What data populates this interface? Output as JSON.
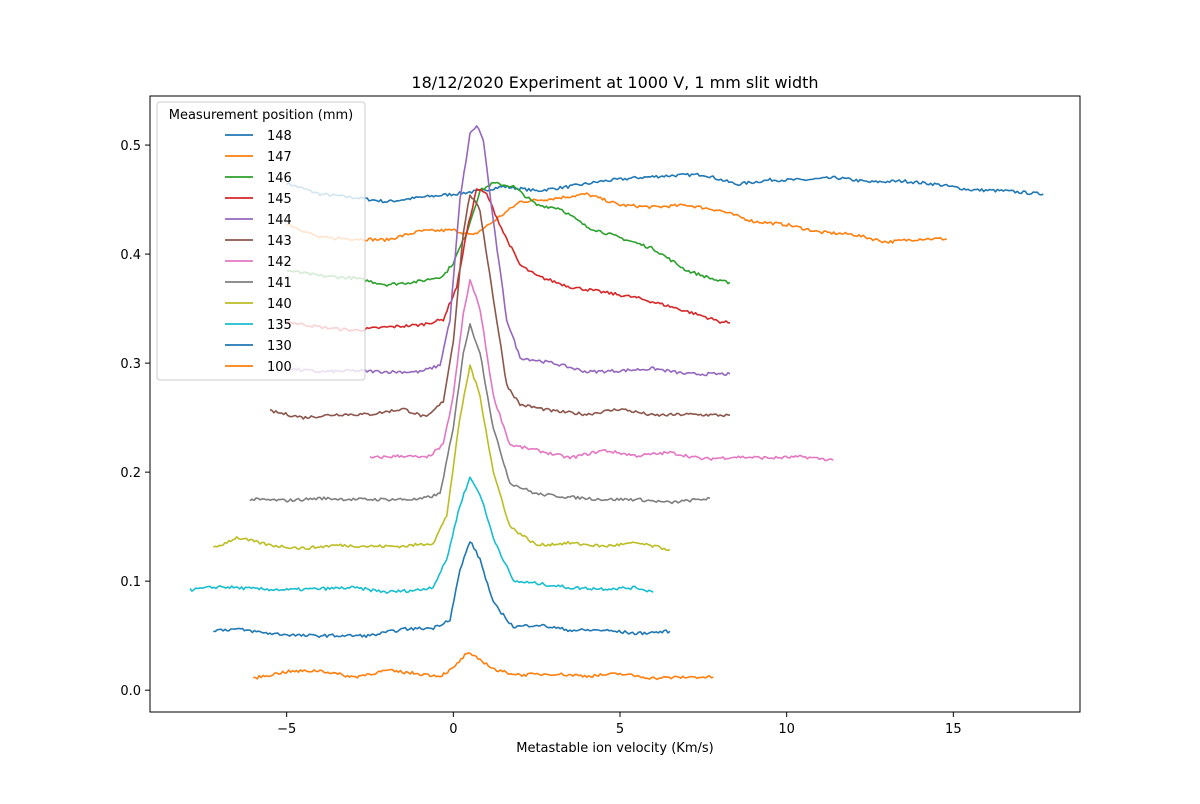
{
  "chart_data": {
    "type": "line",
    "title": "18/12/2020 Experiment at 1000 V, 1 mm slit width",
    "xlabel": "Metastable ion velocity (Km/s)",
    "ylabel": "",
    "xlim": [
      -9.1,
      18.8
    ],
    "ylim": [
      -0.02,
      0.545
    ],
    "x_ticks": [
      -5,
      0,
      5,
      10,
      15
    ],
    "x_tick_labels": [
      "−5",
      "0",
      "5",
      "10",
      "15"
    ],
    "y_ticks": [
      0.0,
      0.1,
      0.2,
      0.3,
      0.4,
      0.5
    ],
    "y_tick_labels": [
      "0.0",
      "0.1",
      "0.2",
      "0.3",
      "0.4",
      "0.5"
    ],
    "grid": false,
    "legend": {
      "title": "Measurement position (mm)",
      "placement": "upper-left"
    },
    "series": [
      {
        "name": "148",
        "color": "#1f77b4",
        "points": [
          [
            -5.0,
            0.465
          ],
          [
            -4.0,
            0.455
          ],
          [
            -3.0,
            0.452
          ],
          [
            -2.0,
            0.448
          ],
          [
            -1.0,
            0.452
          ],
          [
            0.0,
            0.455
          ],
          [
            0.8,
            0.458
          ],
          [
            1.5,
            0.462
          ],
          [
            2.5,
            0.458
          ],
          [
            3.5,
            0.462
          ],
          [
            4.5,
            0.467
          ],
          [
            5.5,
            0.47
          ],
          [
            6.5,
            0.472
          ],
          [
            7.5,
            0.473
          ],
          [
            8.5,
            0.464
          ],
          [
            9.5,
            0.468
          ],
          [
            10.5,
            0.468
          ],
          [
            11.5,
            0.47
          ],
          [
            12.5,
            0.466
          ],
          [
            13.5,
            0.467
          ],
          [
            14.5,
            0.464
          ],
          [
            15.5,
            0.459
          ],
          [
            16.5,
            0.458
          ],
          [
            17.7,
            0.455
          ]
        ]
      },
      {
        "name": "147",
        "color": "#ff7f0e",
        "points": [
          [
            -5.0,
            0.428
          ],
          [
            -4.0,
            0.415
          ],
          [
            -3.0,
            0.414
          ],
          [
            -2.0,
            0.413
          ],
          [
            -1.0,
            0.421
          ],
          [
            0.0,
            0.422
          ],
          [
            0.6,
            0.417
          ],
          [
            1.2,
            0.43
          ],
          [
            2.0,
            0.448
          ],
          [
            3.0,
            0.451
          ],
          [
            4.0,
            0.455
          ],
          [
            5.0,
            0.445
          ],
          [
            6.0,
            0.443
          ],
          [
            7.0,
            0.445
          ],
          [
            8.0,
            0.44
          ],
          [
            9.0,
            0.43
          ],
          [
            10.0,
            0.427
          ],
          [
            11.0,
            0.42
          ],
          [
            12.0,
            0.418
          ],
          [
            13.0,
            0.411
          ],
          [
            14.0,
            0.414
          ],
          [
            14.8,
            0.414
          ]
        ]
      },
      {
        "name": "146",
        "color": "#2ca02c",
        "points": [
          [
            -5.0,
            0.385
          ],
          [
            -4.0,
            0.38
          ],
          [
            -3.0,
            0.378
          ],
          [
            -2.0,
            0.372
          ],
          [
            -1.0,
            0.375
          ],
          [
            -0.3,
            0.38
          ],
          [
            0.0,
            0.392
          ],
          [
            0.4,
            0.42
          ],
          [
            0.8,
            0.458
          ],
          [
            1.2,
            0.465
          ],
          [
            1.8,
            0.462
          ],
          [
            2.5,
            0.445
          ],
          [
            3.2,
            0.442
          ],
          [
            4.0,
            0.425
          ],
          [
            5.0,
            0.415
          ],
          [
            6.0,
            0.405
          ],
          [
            7.0,
            0.385
          ],
          [
            8.0,
            0.375
          ],
          [
            8.3,
            0.374
          ]
        ]
      },
      {
        "name": "145",
        "color": "#d62728",
        "points": [
          [
            -5.0,
            0.338
          ],
          [
            -4.0,
            0.333
          ],
          [
            -3.0,
            0.33
          ],
          [
            -2.0,
            0.333
          ],
          [
            -1.0,
            0.335
          ],
          [
            -0.3,
            0.34
          ],
          [
            0.1,
            0.37
          ],
          [
            0.4,
            0.42
          ],
          [
            0.7,
            0.46
          ],
          [
            1.0,
            0.455
          ],
          [
            1.5,
            0.42
          ],
          [
            2.0,
            0.39
          ],
          [
            2.5,
            0.38
          ],
          [
            3.5,
            0.37
          ],
          [
            4.5,
            0.365
          ],
          [
            5.5,
            0.36
          ],
          [
            6.5,
            0.352
          ],
          [
            7.5,
            0.343
          ],
          [
            8.0,
            0.338
          ],
          [
            8.3,
            0.337
          ]
        ]
      },
      {
        "name": "144",
        "color": "#9467bd",
        "points": [
          [
            -5.0,
            0.295
          ],
          [
            -4.0,
            0.292
          ],
          [
            -3.0,
            0.293
          ],
          [
            -2.0,
            0.292
          ],
          [
            -1.0,
            0.292
          ],
          [
            -0.4,
            0.298
          ],
          [
            -0.1,
            0.34
          ],
          [
            0.2,
            0.45
          ],
          [
            0.5,
            0.51
          ],
          [
            0.7,
            0.518
          ],
          [
            0.9,
            0.505
          ],
          [
            1.2,
            0.43
          ],
          [
            1.6,
            0.34
          ],
          [
            2.0,
            0.305
          ],
          [
            3.0,
            0.3
          ],
          [
            4.0,
            0.292
          ],
          [
            5.0,
            0.293
          ],
          [
            6.0,
            0.295
          ],
          [
            7.0,
            0.29
          ],
          [
            8.3,
            0.29
          ]
        ]
      },
      {
        "name": "143",
        "color": "#8c564b",
        "points": [
          [
            -5.5,
            0.256
          ],
          [
            -4.5,
            0.25
          ],
          [
            -3.5,
            0.253
          ],
          [
            -2.5,
            0.253
          ],
          [
            -1.5,
            0.258
          ],
          [
            -0.8,
            0.25
          ],
          [
            -0.3,
            0.265
          ],
          [
            0.0,
            0.32
          ],
          [
            0.3,
            0.42
          ],
          [
            0.5,
            0.455
          ],
          [
            0.8,
            0.44
          ],
          [
            1.2,
            0.36
          ],
          [
            1.6,
            0.28
          ],
          [
            2.0,
            0.262
          ],
          [
            3.0,
            0.256
          ],
          [
            4.0,
            0.253
          ],
          [
            5.0,
            0.258
          ],
          [
            6.0,
            0.252
          ],
          [
            7.0,
            0.253
          ],
          [
            8.3,
            0.252
          ]
        ]
      },
      {
        "name": "142",
        "color": "#e377c2",
        "points": [
          [
            -2.5,
            0.213
          ],
          [
            -1.5,
            0.215
          ],
          [
            -0.8,
            0.213
          ],
          [
            -0.3,
            0.225
          ],
          [
            0.0,
            0.27
          ],
          [
            0.3,
            0.345
          ],
          [
            0.5,
            0.376
          ],
          [
            0.8,
            0.35
          ],
          [
            1.2,
            0.27
          ],
          [
            1.7,
            0.225
          ],
          [
            2.5,
            0.22
          ],
          [
            3.5,
            0.213
          ],
          [
            4.5,
            0.22
          ],
          [
            5.5,
            0.215
          ],
          [
            6.5,
            0.218
          ],
          [
            7.5,
            0.212
          ],
          [
            8.5,
            0.214
          ],
          [
            9.5,
            0.213
          ],
          [
            10.5,
            0.214
          ],
          [
            11.4,
            0.211
          ]
        ]
      },
      {
        "name": "141",
        "color": "#7f7f7f",
        "points": [
          [
            -6.1,
            0.175
          ],
          [
            -5.0,
            0.174
          ],
          [
            -4.0,
            0.176
          ],
          [
            -3.0,
            0.175
          ],
          [
            -2.0,
            0.175
          ],
          [
            -1.0,
            0.175
          ],
          [
            -0.4,
            0.18
          ],
          [
            0.0,
            0.24
          ],
          [
            0.3,
            0.31
          ],
          [
            0.5,
            0.335
          ],
          [
            0.8,
            0.31
          ],
          [
            1.2,
            0.24
          ],
          [
            1.7,
            0.19
          ],
          [
            2.5,
            0.18
          ],
          [
            3.5,
            0.177
          ],
          [
            4.5,
            0.175
          ],
          [
            5.5,
            0.175
          ],
          [
            6.5,
            0.172
          ],
          [
            7.7,
            0.176
          ]
        ]
      },
      {
        "name": "140",
        "color": "#bcbd22",
        "points": [
          [
            -7.2,
            0.13
          ],
          [
            -6.5,
            0.14
          ],
          [
            -5.5,
            0.133
          ],
          [
            -4.5,
            0.13
          ],
          [
            -3.5,
            0.133
          ],
          [
            -2.5,
            0.132
          ],
          [
            -1.5,
            0.132
          ],
          [
            -0.6,
            0.135
          ],
          [
            -0.2,
            0.16
          ],
          [
            0.2,
            0.25
          ],
          [
            0.5,
            0.298
          ],
          [
            0.8,
            0.27
          ],
          [
            1.2,
            0.2
          ],
          [
            1.7,
            0.15
          ],
          [
            2.5,
            0.133
          ],
          [
            3.5,
            0.135
          ],
          [
            4.5,
            0.132
          ],
          [
            5.5,
            0.135
          ],
          [
            6.5,
            0.129
          ]
        ]
      },
      {
        "name": "135",
        "color": "#17becf",
        "points": [
          [
            -7.9,
            0.092
          ],
          [
            -7.0,
            0.095
          ],
          [
            -6.0,
            0.093
          ],
          [
            -5.0,
            0.092
          ],
          [
            -4.0,
            0.093
          ],
          [
            -3.0,
            0.094
          ],
          [
            -2.0,
            0.09
          ],
          [
            -1.0,
            0.092
          ],
          [
            -0.6,
            0.095
          ],
          [
            -0.2,
            0.12
          ],
          [
            0.2,
            0.17
          ],
          [
            0.5,
            0.195
          ],
          [
            0.8,
            0.18
          ],
          [
            1.2,
            0.14
          ],
          [
            1.8,
            0.1
          ],
          [
            2.5,
            0.098
          ],
          [
            3.5,
            0.094
          ],
          [
            4.5,
            0.093
          ],
          [
            5.5,
            0.094
          ],
          [
            6.0,
            0.09
          ]
        ]
      },
      {
        "name": "130",
        "color": "#1f77b4",
        "points": [
          [
            -7.2,
            0.055
          ],
          [
            -6.5,
            0.056
          ],
          [
            -5.5,
            0.052
          ],
          [
            -4.5,
            0.05
          ],
          [
            -3.5,
            0.05
          ],
          [
            -2.5,
            0.05
          ],
          [
            -1.5,
            0.056
          ],
          [
            -0.6,
            0.057
          ],
          [
            -0.1,
            0.065
          ],
          [
            0.2,
            0.11
          ],
          [
            0.5,
            0.137
          ],
          [
            0.8,
            0.12
          ],
          [
            1.2,
            0.08
          ],
          [
            1.8,
            0.058
          ],
          [
            2.5,
            0.06
          ],
          [
            3.5,
            0.055
          ],
          [
            4.5,
            0.055
          ],
          [
            5.5,
            0.052
          ],
          [
            6.5,
            0.054
          ]
        ]
      },
      {
        "name": "100",
        "color": "#ff7f0e",
        "points": [
          [
            -6.0,
            0.011
          ],
          [
            -5.0,
            0.017
          ],
          [
            -4.0,
            0.018
          ],
          [
            -3.0,
            0.012
          ],
          [
            -2.0,
            0.018
          ],
          [
            -1.0,
            0.015
          ],
          [
            -0.4,
            0.013
          ],
          [
            0.0,
            0.02
          ],
          [
            0.4,
            0.034
          ],
          [
            0.8,
            0.028
          ],
          [
            1.3,
            0.018
          ],
          [
            2.0,
            0.014
          ],
          [
            3.0,
            0.015
          ],
          [
            4.0,
            0.013
          ],
          [
            5.0,
            0.015
          ],
          [
            6.0,
            0.011
          ],
          [
            7.0,
            0.012
          ],
          [
            7.8,
            0.012
          ]
        ]
      }
    ]
  }
}
